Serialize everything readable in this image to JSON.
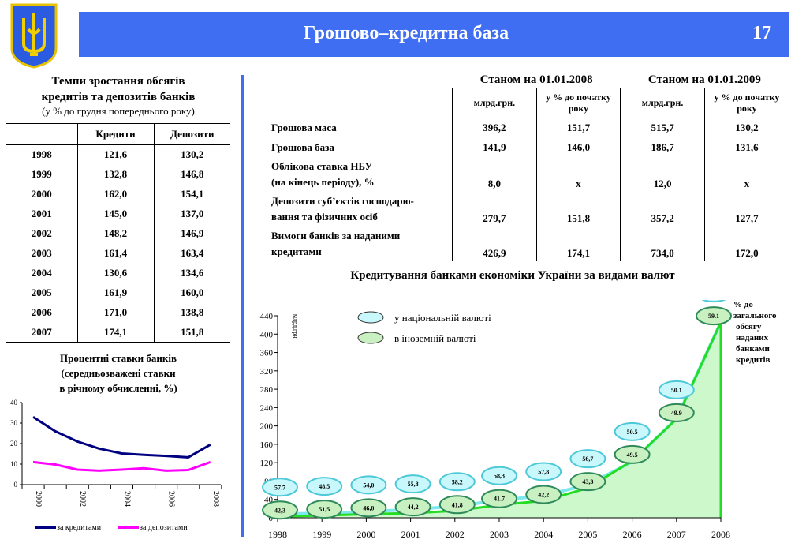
{
  "header": {
    "title": "Грошово–кредитна база",
    "page_number": "17",
    "emblem": "trident-emblem",
    "color": "#3f6ef2"
  },
  "growth_table": {
    "title_line1": "Темпи зростання обсягів",
    "title_line2": "кредитів та депозитів банків",
    "subtitle": "(у % до грудня попереднього року)",
    "columns": [
      "",
      "Кредити",
      "Депозити"
    ],
    "rows": [
      [
        "1998",
        "121,6",
        "130,2"
      ],
      [
        "1999",
        "132,8",
        "146,8"
      ],
      [
        "2000",
        "162,0",
        "154,1"
      ],
      [
        "2001",
        "145,0",
        "137,0"
      ],
      [
        "2002",
        "148,2",
        "146,9"
      ],
      [
        "2003",
        "161,4",
        "163,4"
      ],
      [
        "2004",
        "130,6",
        "134,6"
      ],
      [
        "2005",
        "161,9",
        "160,0"
      ],
      [
        "2006",
        "171,0",
        "138,8"
      ],
      [
        "2007",
        "174,1",
        "151,8"
      ]
    ]
  },
  "money_table": {
    "period1": "Станом на 01.01.2008",
    "period2": "Станом на 01.01.2009",
    "sub_cols": [
      "млрд.грн.",
      "у % до початку року",
      "млрд.грн.",
      "у % до початку року"
    ],
    "rows": [
      {
        "label": "Грошова маса",
        "values": [
          "396,2",
          "151,7",
          "515,7",
          "130,2"
        ]
      },
      {
        "label": "Грошова база",
        "values": [
          "141,9",
          "146,0",
          "186,7",
          "131,6"
        ]
      },
      {
        "label": "Облікова ставка НБУ",
        "label2": "(на кінець періоду), %",
        "values": [
          "8,0",
          "х",
          "12,0",
          "х"
        ]
      },
      {
        "label": "Депозити суб’єктів господарю-",
        "label2": "вання та фізичних осіб",
        "values": [
          "279,7",
          "151,8",
          "357,2",
          "127,7"
        ]
      },
      {
        "label": "Вимоги банків за наданими",
        "label2": "кредитами",
        "values": [
          "426,9",
          "174,1",
          "734,0",
          "172,0"
        ]
      }
    ]
  },
  "chart_data": [
    {
      "type": "area",
      "title": "Кредитування банками економіки України за видами валют",
      "ylabel": "млрд.грн.",
      "ylim": [
        0,
        440
      ],
      "yticks": [
        0,
        40,
        80,
        120,
        160,
        200,
        240,
        280,
        320,
        360,
        400,
        440
      ],
      "categories": [
        "1998",
        "1999",
        "2000",
        "2001",
        "2002",
        "2003",
        "2004",
        "2005",
        "2006",
        "2007",
        "2008"
      ],
      "series": [
        {
          "name": "у національній валюті",
          "color": "#2ad4e0",
          "line_values": [
            8,
            10,
            13,
            18,
            25,
            38,
            48,
            72,
            122,
            216,
            426
          ],
          "share_pct": [
            "57.7",
            "48,5",
            "54,0",
            "55,8",
            "58,2",
            "58,3",
            "57,8",
            "56,7",
            "50.5",
            "50.1",
            "40.9"
          ]
        },
        {
          "name": "в іноземній валюті",
          "color": "#22dd22",
          "line_values": [
            3,
            5,
            8,
            10,
            15,
            28,
            37,
            65,
            124,
            215,
            426
          ],
          "share_pct": [
            "42,3",
            "51,5",
            "46,0",
            "44,2",
            "41,8",
            "41.7",
            "42,2",
            "43,3",
            "49.5",
            "49.9",
            "59.1"
          ]
        }
      ],
      "note": [
        "% до",
        "загального",
        "обсягу",
        "наданих",
        "банками",
        "кредитів"
      ]
    },
    {
      "type": "line",
      "title_lines": [
        "Процентні ставки банків",
        "(середньозважені ставки",
        "в річному обчисленні, %)"
      ],
      "ylim": [
        0,
        40
      ],
      "yticks": [
        0,
        10,
        20,
        30,
        40
      ],
      "x": [
        2000,
        2001,
        2002,
        2003,
        2004,
        2005,
        2006,
        2007,
        2008
      ],
      "xtick_labels": [
        "2000",
        "2002",
        "2004",
        "2006",
        "2008"
      ],
      "series": [
        {
          "name": "за кредитами",
          "color": "#000080",
          "values": [
            33,
            26,
            21,
            17.5,
            15.2,
            14.5,
            14,
            13.3,
            19.5
          ]
        },
        {
          "name": "за депозитами",
          "color": "#ff00ff",
          "values": [
            11,
            9.8,
            7.3,
            6.8,
            7.3,
            8,
            6.8,
            7.1,
            11
          ]
        }
      ]
    }
  ]
}
